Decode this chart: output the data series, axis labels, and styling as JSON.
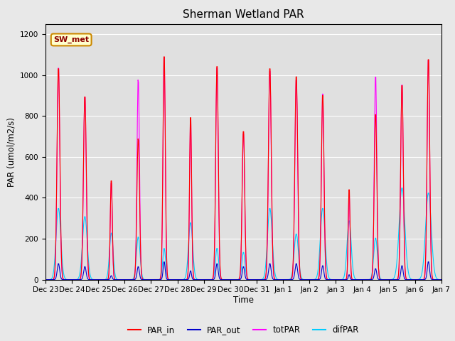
{
  "title": "Sherman Wetland PAR",
  "ylabel": "PAR (umol/m2/s)",
  "xlabel": "Time",
  "annotation": "SW_met",
  "ylim": [
    0,
    1250
  ],
  "yticks": [
    0,
    200,
    400,
    600,
    800,
    1000,
    1200
  ],
  "xtick_labels": [
    "Dec 23",
    "Dec 24",
    "Dec 25",
    "Dec 26",
    "Dec 27",
    "Dec 28",
    "Dec 29",
    "Dec 30",
    "Dec 31",
    "Jan 1",
    "Jan 2",
    "Jan 3",
    "Jan 4",
    "Jan 5",
    "Jan 6",
    "Jan 7"
  ],
  "colors": {
    "PAR_in": "#ff0000",
    "PAR_out": "#0000cc",
    "totPAR": "#ff00ff",
    "difPAR": "#00ccff"
  },
  "background_color": "#e8e8e8",
  "plot_bg_color": "#e0e0e0",
  "n_days": 15,
  "points_per_day": 48,
  "peaks_PAR_in": [
    1050,
    910,
    500,
    700,
    1120,
    820,
    1065,
    740,
    1050,
    1010,
    920,
    460,
    825,
    970,
    1100
  ],
  "peaks_totPAR": [
    1055,
    910,
    490,
    995,
    1120,
    810,
    1060,
    730,
    1040,
    995,
    930,
    430,
    1015,
    975,
    1100
  ],
  "peaks_PAR_out": [
    80,
    65,
    20,
    65,
    90,
    45,
    80,
    65,
    80,
    80,
    70,
    25,
    55,
    70,
    90
  ],
  "peaks_difPAR": [
    350,
    310,
    230,
    210,
    155,
    280,
    155,
    135,
    350,
    225,
    350,
    290,
    205,
    450,
    425
  ],
  "widths_in": [
    0.055,
    0.055,
    0.04,
    0.05,
    0.045,
    0.04,
    0.05,
    0.05,
    0.055,
    0.055,
    0.05,
    0.035,
    0.05,
    0.05,
    0.05
  ],
  "widths_dif": [
    0.09,
    0.09,
    0.07,
    0.07,
    0.055,
    0.08,
    0.06,
    0.06,
    0.09,
    0.08,
    0.09,
    0.08,
    0.07,
    0.11,
    0.11
  ],
  "peak_positions": [
    0.5,
    0.5,
    0.5,
    0.52,
    0.5,
    0.5,
    0.5,
    0.5,
    0.5,
    0.5,
    0.5,
    0.5,
    0.5,
    0.5,
    0.5
  ]
}
